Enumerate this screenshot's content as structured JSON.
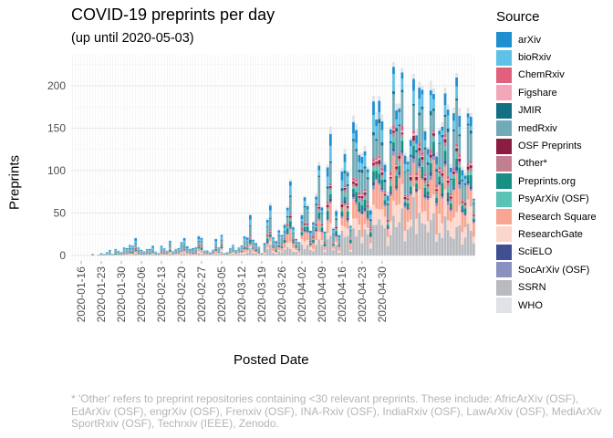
{
  "chart_data": {
    "type": "bar",
    "stacked": true,
    "title": "COVID-19 preprints per day",
    "subtitle": "(up until 2020-05-03)",
    "xlabel": "Posted Date",
    "ylabel": "Preprints",
    "ylim": [
      0,
      230
    ],
    "yticks": [
      0,
      50,
      100,
      150,
      200
    ],
    "x_start": "2020-01-13",
    "xtick_labels": [
      "2020-01-16",
      "2020-01-23",
      "2020-01-30",
      "2020-02-06",
      "2020-02-13",
      "2020-02-20",
      "2020-02-27",
      "2020-03-05",
      "2020-03-12",
      "2020-03-19",
      "2020-03-26",
      "2020-04-02",
      "2020-04-09",
      "2020-04-16",
      "2020-04-23",
      "2020-04-30"
    ],
    "grid": true,
    "legend_title": "Source",
    "legend_position": "right",
    "series": [
      {
        "name": "arXiv",
        "color": "#1f8fcf"
      },
      {
        "name": "bioRxiv",
        "color": "#5fc1e8"
      },
      {
        "name": "ChemRxiv",
        "color": "#e0607e"
      },
      {
        "name": "Figshare",
        "color": "#f2a6b8"
      },
      {
        "name": "JMIR",
        "color": "#146e84"
      },
      {
        "name": "medRxiv",
        "color": "#72aab7"
      },
      {
        "name": "OSF Preprints",
        "color": "#8b1d42"
      },
      {
        "name": "Other*",
        "color": "#c27f92"
      },
      {
        "name": "Preprints.org",
        "color": "#178f85"
      },
      {
        "name": "PsyArXiv (OSF)",
        "color": "#5ac2b6"
      },
      {
        "name": "Research Square",
        "color": "#f8a591"
      },
      {
        "name": "ResearchGate",
        "color": "#fdd6cb"
      },
      {
        "name": "SciELO",
        "color": "#3e4f93"
      },
      {
        "name": "SocArXiv (OSF)",
        "color": "#8a91c0"
      },
      {
        "name": "SSRN",
        "color": "#b8babf"
      },
      {
        "name": "WHO",
        "color": "#e1e2e6"
      }
    ],
    "daily_totals": [
      0,
      0,
      0,
      0,
      0,
      0,
      0,
      2,
      0,
      1,
      3,
      2,
      4,
      7,
      2,
      8,
      6,
      4,
      10,
      9,
      13,
      12,
      21,
      10,
      7,
      5,
      8,
      8,
      12,
      5,
      3,
      12,
      9,
      6,
      18,
      5,
      8,
      9,
      16,
      21,
      11,
      8,
      9,
      10,
      24,
      22,
      6,
      6,
      4,
      7,
      20,
      10,
      25,
      3,
      4,
      9,
      13,
      7,
      10,
      12,
      23,
      22,
      49,
      19,
      15,
      11,
      3,
      15,
      44,
      62,
      22,
      18,
      31,
      25,
      38,
      58,
      90,
      35,
      20,
      16,
      49,
      70,
      61,
      30,
      41,
      73,
      110,
      58,
      29,
      107,
      152,
      33,
      55,
      25,
      103,
      126,
      100,
      36,
      165,
      155,
      121,
      121,
      129,
      105,
      57,
      188,
      169,
      188,
      166,
      110,
      75,
      152,
      228,
      179,
      179,
      221,
      121,
      116,
      139,
      214,
      149,
      205,
      200,
      150,
      128,
      206,
      197,
      122,
      150,
      157,
      198,
      178,
      108,
      174,
      215,
      174,
      105,
      98,
      174,
      168,
      68
    ],
    "series_share": {
      "arXiv": 0.08,
      "bioRxiv": 0.09,
      "ChemRxiv": 0.02,
      "Figshare": 0.01,
      "JMIR": 0.02,
      "medRxiv": 0.22,
      "OSF Preprints": 0.02,
      "Other*": 0.02,
      "Preprints.org": 0.06,
      "PsyArXiv (OSF)": 0.03,
      "Research Square": 0.12,
      "ResearchGate": 0.08,
      "SciELO": 0.02,
      "SocArXiv (OSF)": 0.02,
      "SSRN": 0.15,
      "WHO": 0.04
    }
  },
  "footnote": "* 'Other' refers to preprint repositories containing <30 relevant preprints. These include: AfricArXiv (OSF),\nEdArXiv (OSF), engrXiv (OSF), Frenxiv (OSF), INA-Rxiv (OSF), IndiaRxiv (OSF), LawArXiv (OSF), MediArXiv\nSportRxiv (OSF), Techrxiv (IEEE), Zenodo."
}
